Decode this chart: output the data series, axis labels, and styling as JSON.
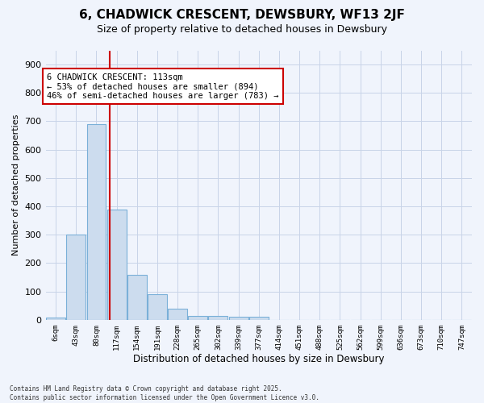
{
  "title": "6, CHADWICK CRESCENT, DEWSBURY, WF13 2JF",
  "subtitle": "Size of property relative to detached houses in Dewsbury",
  "xlabel": "Distribution of detached houses by size in Dewsbury",
  "ylabel": "Number of detached properties",
  "footer_line1": "Contains HM Land Registry data © Crown copyright and database right 2025.",
  "footer_line2": "Contains public sector information licensed under the Open Government Licence v3.0.",
  "bar_labels": [
    "6sqm",
    "43sqm",
    "80sqm",
    "117sqm",
    "154sqm",
    "191sqm",
    "228sqm",
    "265sqm",
    "302sqm",
    "339sqm",
    "377sqm",
    "414sqm",
    "451sqm",
    "488sqm",
    "525sqm",
    "562sqm",
    "599sqm",
    "636sqm",
    "673sqm",
    "710sqm",
    "747sqm"
  ],
  "bar_values": [
    8,
    300,
    690,
    390,
    158,
    90,
    38,
    15,
    15,
    10,
    10,
    0,
    0,
    0,
    0,
    0,
    0,
    0,
    0,
    0,
    0
  ],
  "bar_color": "#ccdcee",
  "bar_edgecolor": "#7ab0d8",
  "grid_color": "#c8d4e8",
  "bg_color": "#f0f4fc",
  "vline_x": 2.65,
  "vline_color": "#cc0000",
  "annotation_line1": "6 CHADWICK CRESCENT: 113sqm",
  "annotation_line2": "← 53% of detached houses are smaller (894)",
  "annotation_line3": "46% of semi-detached houses are larger (783) →",
  "annotation_box_facecolor": "#ffffff",
  "annotation_border_color": "#cc0000",
  "ylim": [
    0,
    950
  ],
  "yticks": [
    0,
    100,
    200,
    300,
    400,
    500,
    600,
    700,
    800,
    900
  ]
}
